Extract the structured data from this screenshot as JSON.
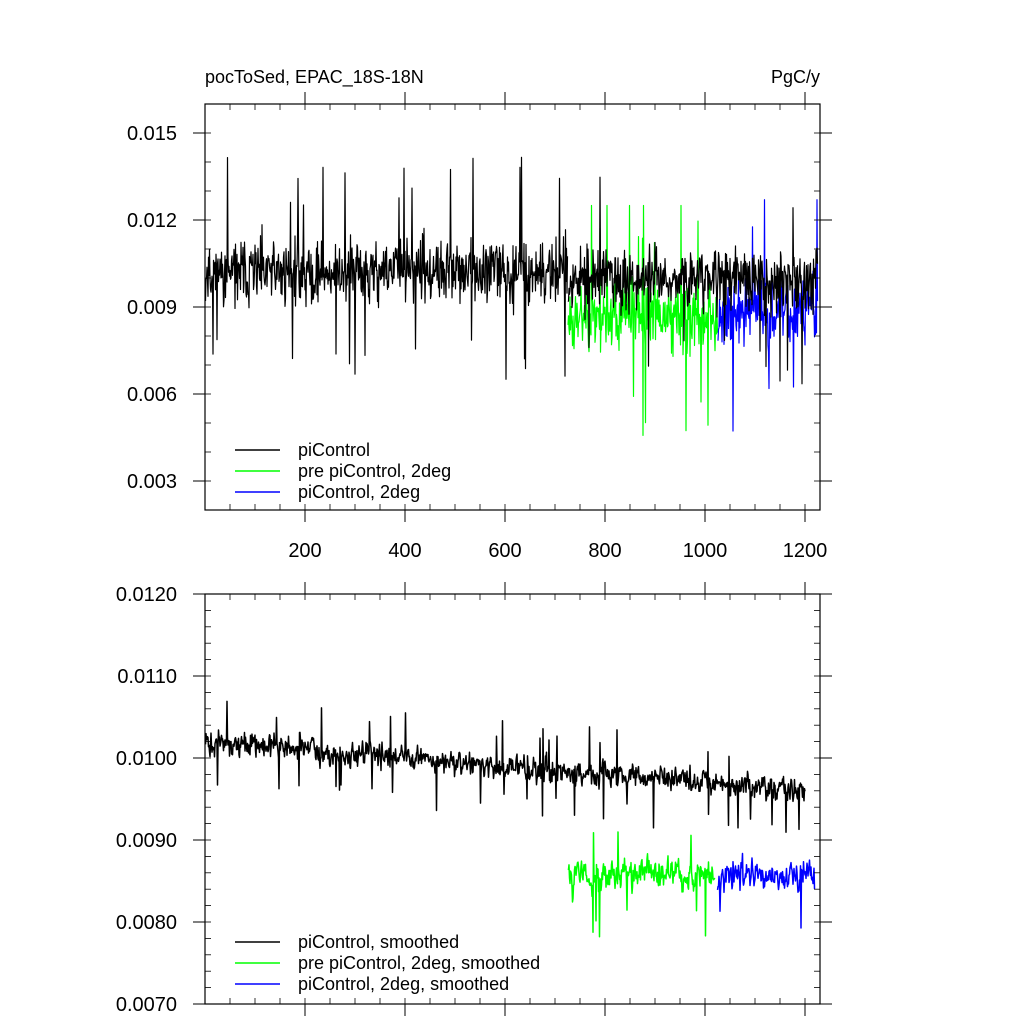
{
  "chart_data": [
    {
      "type": "line",
      "title_left": "pocToSed, EPAC_18S-18N",
      "title_right": "PgC/y",
      "xlim": [
        0,
        1230
      ],
      "ylim": [
        0.002,
        0.016
      ],
      "x_ticks": [
        200,
        400,
        600,
        800,
        1000,
        1200
      ],
      "x_tick_labels": [
        "200",
        "400",
        "600",
        "800",
        "1000",
        "1200"
      ],
      "y_ticks": [
        0.003,
        0.006,
        0.009,
        0.012,
        0.015
      ],
      "y_tick_labels": [
        "0.003",
        "0.006",
        "0.009",
        "0.012",
        "0.015"
      ],
      "legend_position": "bottom-left",
      "series": [
        {
          "name": "piControl",
          "color": "#000000",
          "x_range": [
            1,
            725
          ],
          "mean": 0.0102,
          "amplitude": 0.0018,
          "min": 0.005,
          "max": 0.0151,
          "seed": 11
        },
        {
          "name": "pre piControl, 2deg",
          "color": "#00ff00",
          "x_range": [
            726,
            1025
          ],
          "mean": 0.0087,
          "amplitude": 0.002,
          "min": 0.0039,
          "max": 0.0125,
          "seed": 23
        },
        {
          "name": "piControl, 2deg",
          "color": "#0000ff",
          "x_range": [
            1026,
            1225
          ],
          "mean": 0.0088,
          "amplitude": 0.002,
          "min": 0.0041,
          "max": 0.0127,
          "seed": 37
        },
        {
          "name": "",
          "color": "#000000",
          "x_range": [
            726,
            1225
          ],
          "mean": 0.01,
          "amplitude": 0.0017,
          "min": 0.0054,
          "max": 0.0147,
          "seed": 53
        }
      ]
    },
    {
      "type": "line",
      "xlim": [
        0,
        1230
      ],
      "ylim": [
        0.007,
        0.012
      ],
      "x_ticks": [
        200,
        400,
        600,
        800,
        1000,
        1200
      ],
      "y_ticks": [
        0.007,
        0.008,
        0.009,
        0.01,
        0.011,
        0.012
      ],
      "y_tick_labels": [
        "0.0070",
        "0.0080",
        "0.0090",
        "0.0100",
        "0.0110",
        "0.0120"
      ],
      "legend_position": "bottom-left",
      "series": [
        {
          "name": "piControl, smoothed",
          "color": "#000000",
          "x_range": [
            1,
            1200
          ],
          "mean_start": 0.0102,
          "mean_end": 0.0096,
          "amplitude": 0.00028,
          "min": 0.0085,
          "max": 0.01147,
          "seed": 71
        },
        {
          "name": "pre piControl, 2deg, smoothed",
          "color": "#00ff00",
          "x_range": [
            726,
            1020
          ],
          "mean": 0.00858,
          "amplitude": 0.00035,
          "min": 0.0074,
          "max": 0.00935,
          "seed": 83
        },
        {
          "name": "piControl, 2deg, smoothed",
          "color": "#0000ff",
          "x_range": [
            1025,
            1220
          ],
          "mean": 0.00855,
          "amplitude": 0.00033,
          "min": 0.00745,
          "max": 0.0093,
          "seed": 97
        }
      ]
    }
  ]
}
